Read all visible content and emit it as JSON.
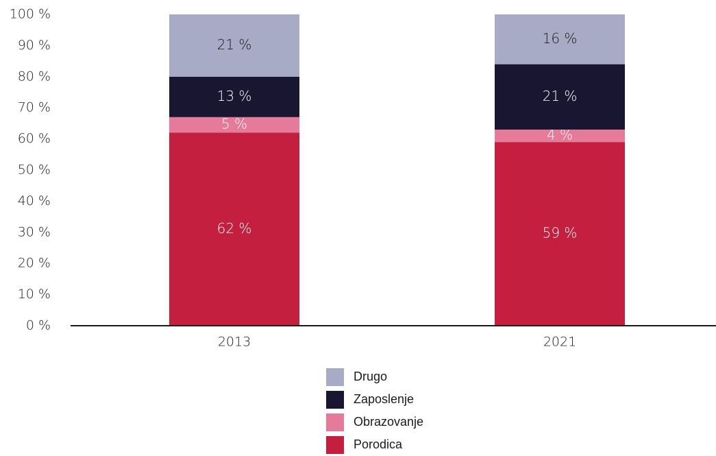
{
  "chart_data": {
    "type": "bar",
    "stacked": true,
    "categories": [
      "2013",
      "2021"
    ],
    "series": [
      {
        "name": "Porodica",
        "values": [
          62,
          59
        ],
        "labels": [
          "62 %",
          "59 %"
        ],
        "color": "#c41f3e",
        "label_color": "#ffffff"
      },
      {
        "name": "Obrazovanje",
        "values": [
          5,
          4
        ],
        "labels": [
          "5 %",
          "4 %"
        ],
        "color": "#e57a9a",
        "label_color": "#ffffff"
      },
      {
        "name": "Zaposlenje",
        "values": [
          13,
          21
        ],
        "labels": [
          "13 %",
          "21 %"
        ],
        "color": "#181630",
        "label_color": "#ffffff"
      },
      {
        "name": "Drugo",
        "values": [
          21,
          16
        ],
        "labels": [
          "21 %",
          "16 %"
        ],
        "color": "#a8abc5",
        "label_color": "#1a1a1a"
      }
    ],
    "ylim": [
      0,
      100
    ],
    "yticks": [
      "0 %",
      "10 %",
      "20 %",
      "30 %",
      "40 %",
      "50 %",
      "60 %",
      "70 %",
      "80 %",
      "90 %",
      "100 %"
    ],
    "grid": false,
    "legend_position": "bottom-center",
    "legend": [
      "Drugo",
      "Zaposlenje",
      "Obrazovanje",
      "Porodica"
    ]
  }
}
